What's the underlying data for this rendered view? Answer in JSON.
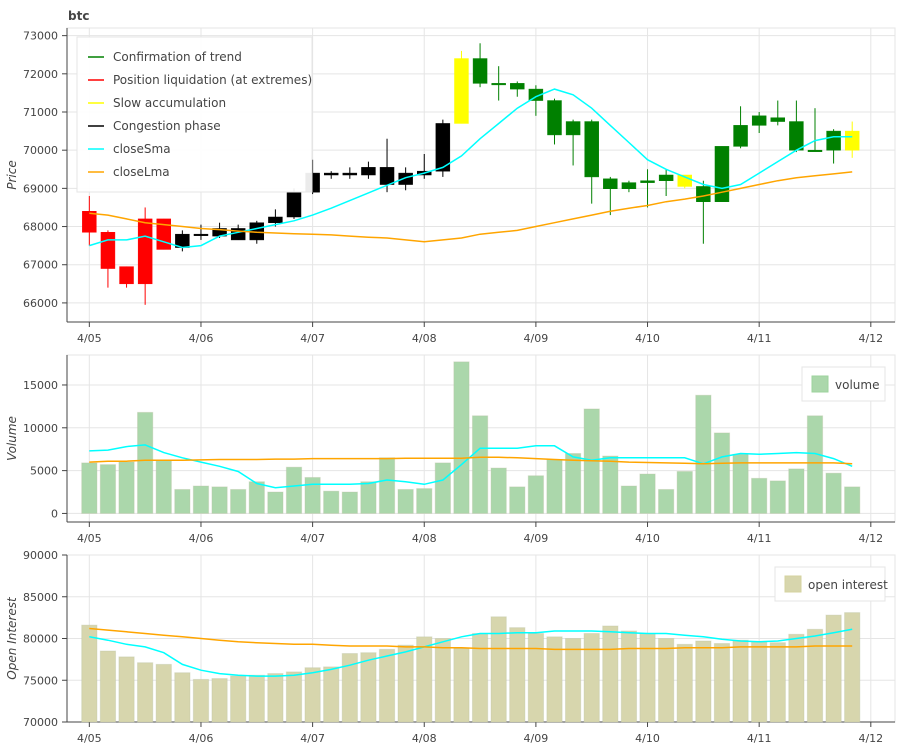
{
  "chart_data": [
    {
      "type": "candlestick",
      "title": "btc",
      "ylabel": "Price",
      "ylim": [
        65500,
        73200
      ],
      "y_ticks": [
        "73000",
        "72000",
        "71000",
        "70000",
        "69000",
        "68000",
        "67000",
        "66000"
      ],
      "x_ticks": [
        "4/05",
        "4/06",
        "4/07",
        "4/08",
        "4/09",
        "4/10",
        "4/11",
        "4/12"
      ],
      "x_tick_positions": [
        0,
        6,
        12,
        18,
        24,
        30,
        36,
        42
      ],
      "xlim": [
        -1.2,
        43.3
      ],
      "grid": true,
      "legend_position": "top-left",
      "legend": [
        {
          "label": "Confirmation of trend",
          "color": "#008000"
        },
        {
          "label": "Position liquidation (at extremes)",
          "color": "#ff0000"
        },
        {
          "label": "Slow accumulation",
          "color": "#ffff00"
        },
        {
          "label": "Congestion phase",
          "color": "#000000"
        },
        {
          "label": "closeSma",
          "color": "#00ffff"
        },
        {
          "label": "closeLma",
          "color": "#ffa500"
        }
      ],
      "phase_colors": {
        "trend": "#008000",
        "liquidation": "#ff0000",
        "accumulation": "#ffff00",
        "congestion": "#000000"
      },
      "candles": [
        {
          "o": 68400,
          "h": 68800,
          "l": 67500,
          "c": 67850,
          "phase": "liquidation"
        },
        {
          "o": 67850,
          "h": 67900,
          "l": 66400,
          "c": 66900,
          "phase": "liquidation"
        },
        {
          "o": 66950,
          "h": 66950,
          "l": 66400,
          "c": 66500,
          "phase": "liquidation"
        },
        {
          "o": 66500,
          "h": 68500,
          "l": 65950,
          "c": 68200,
          "phase": "liquidation"
        },
        {
          "o": 68200,
          "h": 68200,
          "l": 67400,
          "c": 67400,
          "phase": "liquidation"
        },
        {
          "o": 67450,
          "h": 67900,
          "l": 67350,
          "c": 67800,
          "phase": "congestion"
        },
        {
          "o": 67800,
          "h": 68050,
          "l": 67650,
          "c": 67800,
          "phase": "congestion"
        },
        {
          "o": 67750,
          "h": 68100,
          "l": 67700,
          "c": 67950,
          "phase": "congestion"
        },
        {
          "o": 67950,
          "h": 68050,
          "l": 67650,
          "c": 67650,
          "phase": "congestion"
        },
        {
          "o": 67650,
          "h": 68150,
          "l": 67550,
          "c": 68100,
          "phase": "congestion"
        },
        {
          "o": 68100,
          "h": 68450,
          "l": 68000,
          "c": 68250,
          "phase": "congestion"
        },
        {
          "o": 68250,
          "h": 69000,
          "l": 68200,
          "c": 68900,
          "phase": "congestion"
        },
        {
          "o": 68900,
          "h": 69750,
          "l": 68850,
          "c": 69400,
          "phase": "congestion"
        },
        {
          "o": 69400,
          "h": 69450,
          "l": 69250,
          "c": 69350,
          "phase": "congestion"
        },
        {
          "o": 69350,
          "h": 69550,
          "l": 69250,
          "c": 69400,
          "phase": "congestion"
        },
        {
          "o": 69350,
          "h": 69700,
          "l": 69250,
          "c": 69550,
          "phase": "congestion"
        },
        {
          "o": 69550,
          "h": 70300,
          "l": 68900,
          "c": 69100,
          "phase": "congestion"
        },
        {
          "o": 69100,
          "h": 69550,
          "l": 68950,
          "c": 69400,
          "phase": "congestion"
        },
        {
          "o": 69350,
          "h": 69900,
          "l": 69250,
          "c": 69450,
          "phase": "congestion"
        },
        {
          "o": 69450,
          "h": 70800,
          "l": 69300,
          "c": 70700,
          "phase": "congestion"
        },
        {
          "o": 70700,
          "h": 72600,
          "l": 70700,
          "c": 72400,
          "phase": "accumulation"
        },
        {
          "o": 72400,
          "h": 72800,
          "l": 71650,
          "c": 71750,
          "phase": "trend"
        },
        {
          "o": 71750,
          "h": 72200,
          "l": 71300,
          "c": 71750,
          "phase": "trend"
        },
        {
          "o": 71750,
          "h": 71800,
          "l": 71400,
          "c": 71600,
          "phase": "trend"
        },
        {
          "o": 71600,
          "h": 71700,
          "l": 70900,
          "c": 71300,
          "phase": "trend"
        },
        {
          "o": 71300,
          "h": 71350,
          "l": 70150,
          "c": 70400,
          "phase": "trend"
        },
        {
          "o": 70400,
          "h": 70800,
          "l": 69600,
          "c": 70750,
          "phase": "trend"
        },
        {
          "o": 70750,
          "h": 70800,
          "l": 68600,
          "c": 69300,
          "phase": "trend"
        },
        {
          "o": 69250,
          "h": 69300,
          "l": 68300,
          "c": 68990,
          "phase": "trend"
        },
        {
          "o": 68990,
          "h": 69200,
          "l": 68900,
          "c": 69150,
          "phase": "trend"
        },
        {
          "o": 69150,
          "h": 69500,
          "l": 68500,
          "c": 69200,
          "phase": "trend"
        },
        {
          "o": 69200,
          "h": 69500,
          "l": 68800,
          "c": 69350,
          "phase": "trend"
        },
        {
          "o": 69350,
          "h": 69350,
          "l": 69000,
          "c": 69050,
          "phase": "accumulation"
        },
        {
          "o": 69050,
          "h": 69200,
          "l": 67550,
          "c": 68650,
          "phase": "trend"
        },
        {
          "o": 68650,
          "h": 70100,
          "l": 68650,
          "c": 70100,
          "phase": "trend"
        },
        {
          "o": 70100,
          "h": 71150,
          "l": 70050,
          "c": 70650,
          "phase": "trend"
        },
        {
          "o": 70650,
          "h": 71000,
          "l": 70450,
          "c": 70900,
          "phase": "trend"
        },
        {
          "o": 70750,
          "h": 71300,
          "l": 70650,
          "c": 70850,
          "phase": "trend"
        },
        {
          "o": 70750,
          "h": 71300,
          "l": 69950,
          "c": 70000,
          "phase": "trend"
        },
        {
          "o": 70000,
          "h": 71100,
          "l": 70000,
          "c": 70000,
          "phase": "trend"
        },
        {
          "o": 70000,
          "h": 70550,
          "l": 69650,
          "c": 70500,
          "phase": "trend"
        },
        {
          "o": 70000,
          "h": 70750,
          "l": 69800,
          "c": 70500,
          "phase": "accumulation"
        }
      ],
      "series": [
        {
          "name": "closeSma",
          "color": "#00ffff",
          "values": [
            67500,
            67650,
            67650,
            67750,
            67600,
            67450,
            67500,
            67750,
            67850,
            67950,
            68050,
            68150,
            68300,
            68480,
            68680,
            68880,
            69080,
            69280,
            69400,
            69550,
            69850,
            70300,
            70700,
            71100,
            71400,
            71600,
            71450,
            71100,
            70650,
            70200,
            69750,
            69500,
            69300,
            69100,
            69000,
            69100,
            69400,
            69700,
            70000,
            70250,
            70350,
            70350
          ]
        },
        {
          "name": "closeLma",
          "color": "#ffa500",
          "values": [
            68350,
            68300,
            68200,
            68100,
            68050,
            68000,
            67950,
            67920,
            67880,
            67850,
            67830,
            67810,
            67800,
            67780,
            67750,
            67720,
            67700,
            67650,
            67600,
            67650,
            67700,
            67800,
            67850,
            67900,
            68000,
            68100,
            68200,
            68300,
            68400,
            68480,
            68550,
            68650,
            68720,
            68800,
            68900,
            69000,
            69100,
            69200,
            69280,
            69330,
            69380,
            69430
          ]
        }
      ]
    },
    {
      "type": "bar",
      "ylabel": "Volume",
      "ylim": [
        -1000,
        18500
      ],
      "y_ticks": [
        "15000",
        "10000",
        "5000",
        "0"
      ],
      "x_ticks": [
        "4/05",
        "4/06",
        "4/07",
        "4/08",
        "4/09",
        "4/10",
        "4/11",
        "4/12"
      ],
      "legend_position": "top-right",
      "legend": [
        {
          "label": "volume",
          "color": "#9ed39e"
        }
      ],
      "bar_color": "#abd7ab",
      "values": [
        5900,
        5700,
        6000,
        11800,
        6200,
        2800,
        3200,
        3100,
        2800,
        3700,
        2500,
        5400,
        4200,
        2600,
        2500,
        3700,
        6500,
        2800,
        2900,
        5900,
        17700,
        11400,
        5300,
        3100,
        4400,
        6300,
        7000,
        12200,
        6700,
        3200,
        4600,
        2800,
        4900,
        13800,
        9400,
        6900,
        4100,
        3800,
        5200,
        11400,
        4700,
        3100
      ],
      "series": [
        {
          "name": "",
          "color": "#00ffff",
          "values": [
            7300,
            7400,
            7800,
            8000,
            7100,
            6500,
            6000,
            5500,
            4900,
            3500,
            3000,
            3200,
            3400,
            3400,
            3400,
            3500,
            3900,
            3700,
            3400,
            3900,
            5700,
            7600,
            7600,
            7600,
            7900,
            7900,
            6600,
            6200,
            6500,
            6500,
            6500,
            6500,
            6500,
            5800,
            6600,
            7000,
            6900,
            7000,
            7100,
            7000,
            6400,
            5500
          ]
        },
        {
          "name": "",
          "color": "#ffa500",
          "values": [
            6000,
            6100,
            6100,
            6200,
            6200,
            6200,
            6250,
            6300,
            6300,
            6300,
            6350,
            6350,
            6400,
            6400,
            6400,
            6400,
            6400,
            6450,
            6450,
            6450,
            6450,
            6550,
            6550,
            6500,
            6400,
            6300,
            6200,
            6150,
            6100,
            6000,
            5950,
            5900,
            5850,
            5800,
            5850,
            5900,
            5900,
            5900,
            5900,
            5900,
            5900,
            5800
          ]
        }
      ]
    },
    {
      "type": "bar",
      "ylabel": "Open Interest",
      "ylim": [
        70000,
        90000
      ],
      "y_ticks": [
        "90000",
        "85000",
        "80000",
        "75000",
        "70000"
      ],
      "x_ticks": [
        "4/05",
        "4/06",
        "4/07",
        "4/08",
        "4/09",
        "4/10",
        "4/11",
        "4/12"
      ],
      "legend_position": "top-right",
      "legend": [
        {
          "label": "open interest",
          "color": "#d4d39f"
        }
      ],
      "bar_color": "#d7d6ad",
      "values": [
        81600,
        78500,
        77800,
        77100,
        76900,
        75900,
        75100,
        75200,
        75500,
        75600,
        75800,
        76000,
        76500,
        76600,
        78200,
        78300,
        78700,
        79200,
        80200,
        80000,
        78800,
        80600,
        82600,
        81300,
        80600,
        80200,
        80000,
        80600,
        81500,
        80900,
        80600,
        80000,
        79300,
        79700,
        79400,
        79800,
        79600,
        79500,
        80500,
        81100,
        82800,
        83100
      ],
      "series": [
        {
          "name": "",
          "color": "#00ffff",
          "values": [
            80200,
            79800,
            79300,
            79000,
            78300,
            76900,
            76200,
            75800,
            75600,
            75500,
            75500,
            75600,
            75900,
            76300,
            76800,
            77400,
            77900,
            78400,
            79000,
            79600,
            80200,
            80600,
            80600,
            80700,
            80700,
            80900,
            80900,
            80900,
            80800,
            80700,
            80600,
            80600,
            80400,
            80200,
            79900,
            79700,
            79600,
            79700,
            80000,
            80300,
            80700,
            81100
          ]
        },
        {
          "name": "",
          "color": "#ffa500",
          "values": [
            81200,
            81000,
            80800,
            80600,
            80400,
            80200,
            80000,
            79800,
            79600,
            79500,
            79400,
            79300,
            79300,
            79200,
            79100,
            79100,
            79100,
            79000,
            79000,
            78900,
            78900,
            78800,
            78800,
            78800,
            78800,
            78700,
            78700,
            78700,
            78700,
            78800,
            78800,
            78800,
            78900,
            78900,
            78900,
            79000,
            79000,
            79000,
            79000,
            79100,
            79100,
            79100
          ]
        }
      ]
    }
  ]
}
